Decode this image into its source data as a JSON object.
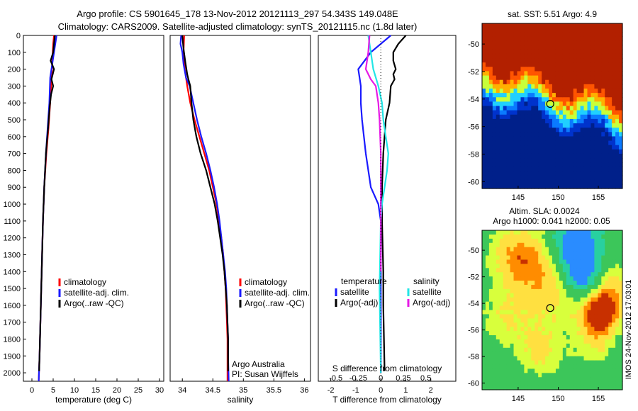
{
  "header": {
    "line1": "Argo profile: CS 5901645_178 13-Nov-2012 20121113_297 54.343S 149.048E",
    "line2": "Climatology: CARS2009. Satellite-adjusted climatology: synTS_20121115.nc (1.8d later)"
  },
  "colors": {
    "climatology": "#ff0000",
    "satellite": "#1a1aff",
    "argo": "#000000",
    "sal_satellite": "#22e6e6",
    "sal_argo": "#e61ae6"
  },
  "chart_data": [
    {
      "type": "line",
      "id": "temperature",
      "xlabel": "temperature (deg C)",
      "ylabel": "",
      "xlim": [
        -2,
        31
      ],
      "ylim": [
        0,
        2050
      ],
      "x_ticks": [
        0,
        5,
        10,
        15,
        20,
        25,
        30
      ],
      "y_ticks": [
        0,
        100,
        200,
        300,
        400,
        500,
        600,
        700,
        800,
        900,
        1000,
        1100,
        1200,
        1300,
        1400,
        1500,
        1600,
        1700,
        1800,
        1900,
        2000
      ],
      "y_inverted": true,
      "legend": [
        "climatology",
        "satellite-adj. clim.",
        "Argo(..raw -QC)"
      ],
      "legend_position": "lower-right",
      "series": [
        {
          "name": "climatology",
          "color": "#ff0000",
          "points": [
            [
              5.2,
              0
            ],
            [
              5.0,
              50
            ],
            [
              4.8,
              150
            ],
            [
              4.6,
              250
            ],
            [
              4.3,
              400
            ],
            [
              3.9,
              550
            ],
            [
              3.4,
              700
            ],
            [
              2.9,
              900
            ],
            [
              2.6,
              1100
            ],
            [
              2.4,
              1300
            ],
            [
              2.2,
              1500
            ],
            [
              2.0,
              1700
            ],
            [
              1.8,
              1900
            ],
            [
              1.6,
              2050
            ]
          ]
        },
        {
          "name": "satellite-adj. clim.",
          "color": "#1a1aff",
          "points": [
            [
              5.8,
              0
            ],
            [
              5.5,
              50
            ],
            [
              4.9,
              150
            ],
            [
              4.3,
              250
            ],
            [
              4.1,
              400
            ],
            [
              3.7,
              550
            ],
            [
              3.3,
              700
            ],
            [
              2.9,
              900
            ],
            [
              2.6,
              1100
            ],
            [
              2.4,
              1300
            ],
            [
              2.2,
              1500
            ],
            [
              2.0,
              1700
            ],
            [
              1.8,
              1900
            ],
            [
              1.6,
              2050
            ]
          ]
        },
        {
          "name": "Argo(..raw -QC)",
          "color": "#000000",
          "points": [
            [
              5.4,
              0
            ],
            [
              5.0,
              100
            ],
            [
              4.4,
              150
            ],
            [
              5.2,
              200
            ],
            [
              4.6,
              260
            ],
            [
              5.0,
              300
            ],
            [
              4.5,
              350
            ],
            [
              4.2,
              420
            ],
            [
              3.8,
              550
            ],
            [
              3.3,
              700
            ],
            [
              2.9,
              900
            ],
            [
              2.6,
              1100
            ],
            [
              2.4,
              1300
            ],
            [
              2.2,
              1500
            ],
            [
              2.0,
              1700
            ],
            [
              1.8,
              1900
            ],
            [
              1.7,
              1990
            ]
          ]
        }
      ]
    },
    {
      "type": "line",
      "id": "salinity",
      "xlabel": "salinity",
      "ylabel": "",
      "xlim": [
        33.8,
        36.1
      ],
      "ylim": [
        0,
        2050
      ],
      "x_ticks": [
        34,
        34.5,
        35,
        35.5,
        36
      ],
      "y_inverted": true,
      "legend": [
        "climatology",
        "satellite-adj. clim.",
        "Argo(..raw -QC)"
      ],
      "legend_position": "lower-right",
      "annotations": [
        "Argo Australia",
        "PI: Susan Wijffels"
      ],
      "series": [
        {
          "name": "climatology",
          "color": "#ff0000",
          "points": [
            [
              34.03,
              0
            ],
            [
              34.02,
              100
            ],
            [
              34.04,
              200
            ],
            [
              34.08,
              300
            ],
            [
              34.13,
              400
            ],
            [
              34.2,
              500
            ],
            [
              34.28,
              600
            ],
            [
              34.36,
              700
            ],
            [
              34.44,
              800
            ],
            [
              34.5,
              900
            ],
            [
              34.56,
              1000
            ],
            [
              34.6,
              1100
            ],
            [
              34.64,
              1200
            ],
            [
              34.67,
              1300
            ],
            [
              34.69,
              1400
            ],
            [
              34.71,
              1500
            ],
            [
              34.72,
              1600
            ],
            [
              34.73,
              1700
            ],
            [
              34.74,
              1800
            ],
            [
              34.74,
              1900
            ],
            [
              34.74,
              2050
            ]
          ]
        },
        {
          "name": "satellite-adj. clim.",
          "color": "#1a1aff",
          "points": [
            [
              33.98,
              0
            ],
            [
              33.97,
              50
            ],
            [
              34.0,
              100
            ],
            [
              34.02,
              170
            ],
            [
              34.06,
              250
            ],
            [
              34.12,
              300
            ],
            [
              34.15,
              350
            ],
            [
              34.18,
              400
            ],
            [
              34.24,
              500
            ],
            [
              34.31,
              600
            ],
            [
              34.39,
              700
            ],
            [
              34.46,
              800
            ],
            [
              34.52,
              900
            ],
            [
              34.57,
              1000
            ],
            [
              34.61,
              1100
            ],
            [
              34.64,
              1200
            ],
            [
              34.67,
              1300
            ],
            [
              34.7,
              1400
            ],
            [
              34.72,
              1500
            ],
            [
              34.73,
              1600
            ],
            [
              34.74,
              1700
            ],
            [
              34.75,
              1800
            ],
            [
              34.75,
              1900
            ],
            [
              34.76,
              2050
            ]
          ]
        },
        {
          "name": "Argo(..raw -QC)",
          "color": "#000000",
          "points": [
            [
              34.0,
              0
            ],
            [
              34.02,
              80
            ],
            [
              34.05,
              160
            ],
            [
              34.08,
              230
            ],
            [
              34.1,
              260
            ],
            [
              34.13,
              300
            ],
            [
              34.15,
              400
            ],
            [
              34.18,
              500
            ],
            [
              34.23,
              600
            ],
            [
              34.3,
              700
            ],
            [
              34.39,
              800
            ],
            [
              34.46,
              900
            ],
            [
              34.53,
              1000
            ],
            [
              34.58,
              1100
            ],
            [
              34.62,
              1200
            ],
            [
              34.66,
              1300
            ],
            [
              34.69,
              1400
            ],
            [
              34.71,
              1500
            ],
            [
              34.73,
              1600
            ],
            [
              34.74,
              1700
            ],
            [
              34.75,
              1800
            ],
            [
              34.75,
              1900
            ],
            [
              34.75,
              1990
            ]
          ]
        }
      ]
    },
    {
      "type": "line",
      "id": "difference",
      "xlabel": "T difference from climatology",
      "xlabel_top": "S difference from climatology",
      "xlim": [
        -2.5,
        3.0
      ],
      "ylim": [
        0,
        2050
      ],
      "x_ticks": [
        -2,
        -1,
        0,
        1,
        2
      ],
      "s_tick_values": [
        -0.5,
        -0.25,
        0,
        0.25,
        0.5
      ],
      "y_inverted": true,
      "legend_left_title": "temperature",
      "legend_right_title": "salinity",
      "legend_left": [
        "satellite",
        "Argo(-adj)"
      ],
      "legend_right": [
        "satellite",
        "Argo(-adj)"
      ],
      "series": [
        {
          "name": "T satellite",
          "color": "#1a1aff",
          "points": [
            [
              0.4,
              0
            ],
            [
              -0.4,
              100
            ],
            [
              -0.9,
              200
            ],
            [
              -0.8,
              300
            ],
            [
              -0.8,
              400
            ],
            [
              -0.75,
              500
            ],
            [
              -0.6,
              700
            ],
            [
              -0.4,
              900
            ],
            [
              -0.1,
              1000
            ],
            [
              0.0,
              1100
            ],
            [
              0.0,
              1500
            ],
            [
              0.0,
              2000
            ]
          ]
        },
        {
          "name": "T Argo(-adj)",
          "color": "#000000",
          "points": [
            [
              1.0,
              0
            ],
            [
              0.7,
              50
            ],
            [
              0.5,
              100
            ],
            [
              0.5,
              150
            ],
            [
              0.6,
              200
            ],
            [
              0.5,
              230
            ],
            [
              0.55,
              260
            ],
            [
              0.4,
              300
            ],
            [
              0.35,
              400
            ],
            [
              0.2,
              500
            ],
            [
              0.1,
              700
            ],
            [
              0.05,
              900
            ],
            [
              0.05,
              1100
            ],
            [
              0.1,
              1400
            ],
            [
              0.1,
              1600
            ],
            [
              0.15,
              1990
            ]
          ]
        },
        {
          "name": "S satellite",
          "color": "#22e6e6",
          "points": [
            [
              -0.5,
              0
            ],
            [
              -0.4,
              100
            ],
            [
              -0.3,
              200
            ],
            [
              -0.1,
              300
            ],
            [
              0.05,
              400
            ],
            [
              0.1,
              500
            ],
            [
              0.2,
              600
            ],
            [
              0.3,
              700
            ],
            [
              0.25,
              800
            ],
            [
              0.15,
              900
            ],
            [
              0.05,
              1000
            ],
            [
              0.0,
              1100
            ],
            [
              -0.05,
              1500
            ],
            [
              0.0,
              2000
            ]
          ]
        },
        {
          "name": "S Argo(-adj)",
          "color": "#e61ae6",
          "points": [
            [
              -0.45,
              0
            ],
            [
              -0.5,
              100
            ],
            [
              -0.6,
              200
            ],
            [
              -0.4,
              260
            ],
            [
              -0.2,
              300
            ],
            [
              -0.1,
              400
            ],
            [
              -0.05,
              500
            ],
            [
              0.0,
              700
            ],
            [
              0.0,
              1000
            ],
            [
              0.0,
              1400
            ]
          ]
        }
      ]
    },
    {
      "type": "heatmap",
      "id": "sst_map",
      "title": "sat. SST: 5.51 Argo: 4.9",
      "xlim": [
        140.5,
        158
      ],
      "ylim": [
        -60.5,
        -48.5
      ],
      "x_ticks": [
        145,
        150,
        155
      ],
      "y_ticks": [
        -50,
        -52,
        -54,
        -56,
        -58,
        -60
      ],
      "colors_top_to_bottom": [
        "#b22000",
        "#ff5500",
        "#ffb000",
        "#c8ff3a",
        "#20d0ff",
        "#0a7aff",
        "#0033cc",
        "#00208a"
      ],
      "marker": {
        "lon": 149.0,
        "lat": -54.35
      }
    },
    {
      "type": "heatmap",
      "id": "sla_map",
      "title_lines": [
        "Altim. SLA: 0.0024",
        "Argo h1000: 0.041 h2000: 0.05"
      ],
      "xlim": [
        140.5,
        158
      ],
      "ylim": [
        -60.5,
        -48.5
      ],
      "x_ticks": [
        145,
        150,
        155
      ],
      "y_ticks": [
        -50,
        -52,
        -54,
        -56,
        -58,
        -60
      ],
      "colors": [
        "#2a8cff",
        "#28d0a0",
        "#3cc65a",
        "#d8ff3c",
        "#ffe040",
        "#ff8c00",
        "#c83000"
      ],
      "marker": {
        "lon": 149.0,
        "lat": -54.35
      }
    }
  ],
  "watermark": "IMOS 24-Nov-2012 17:03:01"
}
